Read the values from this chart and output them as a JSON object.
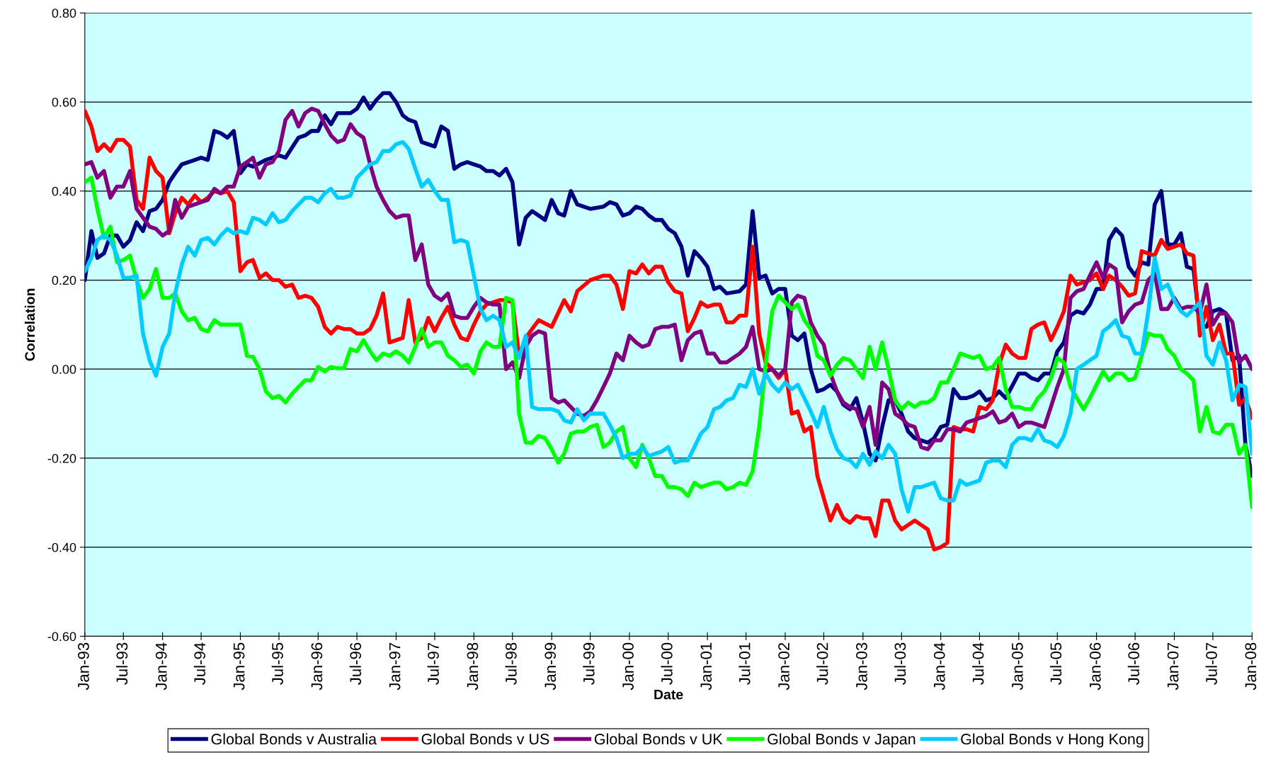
{
  "chart_data": {
    "type": "line",
    "xlabel": "Date",
    "ylabel": "Correlation",
    "xlim": [
      "1993-01",
      "2008-01"
    ],
    "xticks": [
      {
        "value": "1993-01",
        "label": "Jan-93"
      },
      {
        "value": "1993-07",
        "label": "Jul-93"
      },
      {
        "value": "1994-01",
        "label": "Jan-94"
      },
      {
        "value": "1994-07",
        "label": "Jul-94"
      },
      {
        "value": "1995-01",
        "label": "Jan-95"
      },
      {
        "value": "1995-07",
        "label": "Jul-95"
      },
      {
        "value": "1996-01",
        "label": "Jan-96"
      },
      {
        "value": "1996-07",
        "label": "Jul-96"
      },
      {
        "value": "1997-01",
        "label": "Jan-97"
      },
      {
        "value": "1997-07",
        "label": "Jul-97"
      },
      {
        "value": "1998-01",
        "label": "Jan-98"
      },
      {
        "value": "1998-07",
        "label": "Jul-98"
      },
      {
        "value": "1999-01",
        "label": "Jan-99"
      },
      {
        "value": "1999-07",
        "label": "Jul-99"
      },
      {
        "value": "2000-01",
        "label": "Jan-00"
      },
      {
        "value": "2000-07",
        "label": "Jul-00"
      },
      {
        "value": "2001-01",
        "label": "Jan-01"
      },
      {
        "value": "2001-07",
        "label": "Jul-01"
      },
      {
        "value": "2002-01",
        "label": "Jan-02"
      },
      {
        "value": "2002-07",
        "label": "Jul-02"
      },
      {
        "value": "2003-01",
        "label": "Jan-03"
      },
      {
        "value": "2003-07",
        "label": "Jul-03"
      },
      {
        "value": "2004-01",
        "label": "Jan-04"
      },
      {
        "value": "2004-07",
        "label": "Jul-04"
      },
      {
        "value": "2005-01",
        "label": "Jan-05"
      },
      {
        "value": "2005-07",
        "label": "Jul-05"
      },
      {
        "value": "2006-01",
        "label": "Jan-06"
      },
      {
        "value": "2006-07",
        "label": "Jul-06"
      },
      {
        "value": "2007-01",
        "label": "Jan-07"
      },
      {
        "value": "2007-07",
        "label": "Jul-07"
      },
      {
        "value": "2008-01",
        "label": "Jan-08"
      }
    ],
    "ylim": [
      -0.6,
      0.8
    ],
    "yticks": [
      {
        "value": -0.6,
        "label": "-0.60"
      },
      {
        "value": -0.4,
        "label": "-0.40"
      },
      {
        "value": -0.2,
        "label": "-0.20"
      },
      {
        "value": 0.0,
        "label": "0.00"
      },
      {
        "value": 0.2,
        "label": "0.20"
      },
      {
        "value": 0.4,
        "label": "0.40"
      },
      {
        "value": 0.6,
        "label": "0.60"
      },
      {
        "value": 0.8,
        "label": "0.80"
      }
    ],
    "grid": "y",
    "legend": "bottom",
    "marker": "none",
    "line_style": "solid",
    "series": [
      {
        "name": "Global Bonds v Australia",
        "color": "#000080",
        "x": [
          "1993-01",
          "1993-02",
          "1993-03",
          "1993-04",
          "1993-05",
          "1993-06",
          "1993-07",
          "1993-08",
          "1993-09",
          "1993-10",
          "1993-11",
          "1993-12",
          "1994-01",
          "1994-02",
          "1994-03",
          "1994-04",
          "1994-06",
          "1994-07",
          "1994-08",
          "1994-09",
          "1994-10",
          "1994-11",
          "1994-12",
          "1995-01",
          "1995-02",
          "1995-03",
          "1995-05",
          "1995-07",
          "1995-08",
          "1995-10",
          "1995-11",
          "1995-12",
          "1996-01",
          "1996-02",
          "1996-03",
          "1996-04",
          "1996-06",
          "1996-07",
          "1996-08",
          "1996-09",
          "1996-10",
          "1996-11",
          "1996-12",
          "1997-01",
          "1997-02",
          "1997-03",
          "1997-04",
          "1997-05",
          "1997-06",
          "1997-07",
          "1997-08",
          "1997-09",
          "1997-10",
          "1997-11",
          "1997-12",
          "1998-01",
          "1998-02",
          "1998-03",
          "1998-04",
          "1998-05",
          "1998-06",
          "1998-07",
          "1998-08",
          "1998-09",
          "1998-10",
          "1998-11",
          "1998-12",
          "1999-01",
          "1999-02",
          "1999-03",
          "1999-04",
          "1999-05",
          "1999-06",
          "1999-07",
          "1999-09",
          "1999-10",
          "1999-11",
          "1999-12",
          "2000-01",
          "2000-02",
          "2000-03",
          "2000-04",
          "2000-05",
          "2000-06",
          "2000-07",
          "2000-08",
          "2000-09",
          "2000-10",
          "2000-11",
          "2000-12",
          "2001-01",
          "2001-02",
          "2001-03",
          "2001-04",
          "2001-06",
          "2001-07",
          "2001-08",
          "2001-09",
          "2001-10",
          "2001-11",
          "2001-12",
          "2002-01",
          "2002-02",
          "2002-03",
          "2002-04",
          "2002-05",
          "2002-06",
          "2002-07",
          "2002-08",
          "2002-09",
          "2002-10",
          "2002-11",
          "2002-12",
          "2003-01",
          "2003-02",
          "2003-03",
          "2003-04",
          "2003-05",
          "2003-06",
          "2003-07",
          "2003-08",
          "2003-09",
          "2003-10",
          "2003-11",
          "2003-12",
          "2004-01",
          "2004-02",
          "2004-03",
          "2004-04",
          "2004-05",
          "2004-06",
          "2004-07",
          "2004-08",
          "2004-09",
          "2004-10",
          "2004-11",
          "2005-01",
          "2005-02",
          "2005-03",
          "2005-04",
          "2005-05",
          "2005-06",
          "2005-07",
          "2005-08",
          "2005-09",
          "2005-10",
          "2005-11",
          "2005-12",
          "2006-01",
          "2006-02",
          "2006-03",
          "2006-04",
          "2006-05",
          "2006-06",
          "2006-07",
          "2006-08",
          "2006-09",
          "2006-10",
          "2006-11",
          "2006-12",
          "2007-01",
          "2007-02",
          "2007-03",
          "2007-04",
          "2007-05",
          "2007-06",
          "2007-07",
          "2007-08",
          "2007-09",
          "2007-10",
          "2007-11",
          "2007-12",
          "2008-01"
        ],
        "values": [
          0.2,
          0.31,
          0.25,
          0.26,
          0.3,
          0.3,
          0.275,
          0.29,
          0.33,
          0.31,
          0.355,
          0.36,
          0.38,
          0.42,
          0.44,
          0.46,
          0.47,
          0.475,
          0.47,
          0.535,
          0.53,
          0.52,
          0.535,
          0.44,
          0.46,
          0.455,
          0.47,
          0.48,
          0.475,
          0.52,
          0.525,
          0.535,
          0.535,
          0.57,
          0.55,
          0.575,
          0.575,
          0.585,
          0.61,
          0.585,
          0.605,
          0.62,
          0.62,
          0.6,
          0.57,
          0.56,
          0.555,
          0.51,
          0.505,
          0.5,
          0.545,
          0.535,
          0.45,
          0.46,
          0.465,
          0.46,
          0.455,
          0.445,
          0.445,
          0.435,
          0.45,
          0.42,
          0.28,
          0.34,
          0.355,
          0.345,
          0.335,
          0.38,
          0.35,
          0.345,
          0.4,
          0.37,
          0.365,
          0.36,
          0.365,
          0.375,
          0.37,
          0.345,
          0.35,
          0.365,
          0.36,
          0.345,
          0.335,
          0.335,
          0.315,
          0.305,
          0.275,
          0.21,
          0.265,
          0.25,
          0.23,
          0.18,
          0.185,
          0.17,
          0.175,
          0.19,
          0.355,
          0.205,
          0.21,
          0.17,
          0.18,
          0.18,
          0.075,
          0.065,
          0.08,
          0.0,
          -0.05,
          -0.045,
          -0.035,
          -0.05,
          -0.08,
          -0.09,
          -0.065,
          -0.12,
          -0.19,
          -0.205,
          -0.13,
          -0.07,
          -0.07,
          -0.1,
          -0.14,
          -0.155,
          -0.16,
          -0.165,
          -0.155,
          -0.13,
          -0.125,
          -0.045,
          -0.065,
          -0.065,
          -0.06,
          -0.05,
          -0.07,
          -0.065,
          -0.05,
          -0.065,
          -0.01,
          -0.01,
          -0.02,
          -0.025,
          -0.01,
          -0.01,
          0.04,
          0.06,
          0.12,
          0.13,
          0.125,
          0.145,
          0.18,
          0.18,
          0.29,
          0.315,
          0.3,
          0.23,
          0.21,
          0.24,
          0.235,
          0.37,
          0.4,
          0.28,
          0.28,
          0.305,
          0.23,
          0.225,
          0.1,
          0.095,
          0.13,
          0.135,
          0.125,
          0.02,
          0.03,
          -0.17,
          -0.24
        ]
      },
      {
        "name": "Global Bonds v US",
        "color": "#ff0000",
        "x": [
          "1993-01",
          "1993-02",
          "1993-03",
          "1993-04",
          "1993-05",
          "1993-06",
          "1993-07",
          "1993-08",
          "1993-09",
          "1993-10",
          "1993-11",
          "1993-12",
          "1994-01",
          "1994-02",
          "1994-03",
          "1994-04",
          "1994-05",
          "1994-06",
          "1994-07",
          "1994-08",
          "1994-09",
          "1994-10",
          "1994-11",
          "1994-12",
          "1995-01",
          "1995-02",
          "1995-03",
          "1995-04",
          "1995-05",
          "1995-06",
          "1995-07",
          "1995-08",
          "1995-09",
          "1995-10",
          "1995-11",
          "1995-12",
          "1996-01",
          "1996-02",
          "1996-03",
          "1996-04",
          "1996-05",
          "1996-06",
          "1996-07",
          "1996-08",
          "1996-09",
          "1996-10",
          "1996-11",
          "1996-12",
          "1997-01",
          "1997-02",
          "1997-03",
          "1997-04",
          "1997-05",
          "1997-06",
          "1997-07",
          "1997-08",
          "1997-09",
          "1997-10",
          "1997-11",
          "1997-12",
          "1998-01",
          "1998-02",
          "1998-03",
          "1998-04",
          "1998-05",
          "1998-06",
          "1998-07",
          "1998-08",
          "1998-09",
          "1998-10",
          "1998-11",
          "1999-01",
          "1999-03",
          "1999-04",
          "1999-05",
          "1999-07",
          "1999-08",
          "1999-09",
          "1999-10",
          "1999-11",
          "1999-12",
          "2000-01",
          "2000-02",
          "2000-03",
          "2000-04",
          "2000-05",
          "2000-06",
          "2000-07",
          "2000-08",
          "2000-09",
          "2000-10",
          "2000-11",
          "2000-12",
          "2001-01",
          "2001-02",
          "2001-03",
          "2001-04",
          "2001-05",
          "2001-06",
          "2001-07",
          "2001-08",
          "2001-09",
          "2001-10",
          "2001-11",
          "2001-12",
          "2002-01",
          "2002-02",
          "2002-03",
          "2002-04",
          "2002-05",
          "2002-06",
          "2002-07",
          "2002-08",
          "2002-09",
          "2002-10",
          "2002-11",
          "2002-12",
          "2003-01",
          "2003-02",
          "2003-03",
          "2003-04",
          "2003-05",
          "2003-06",
          "2003-07",
          "2003-08",
          "2003-09",
          "2003-10",
          "2003-11",
          "2003-12",
          "2004-01",
          "2004-02",
          "2004-03",
          "2004-04",
          "2004-05",
          "2004-06",
          "2004-07",
          "2004-08",
          "2004-09",
          "2004-10",
          "2004-11",
          "2004-12",
          "2005-01",
          "2005-02",
          "2005-03",
          "2005-04",
          "2005-05",
          "2005-06",
          "2005-07",
          "2005-08",
          "2005-09",
          "2005-10",
          "2005-11",
          "2005-12",
          "2006-01",
          "2006-02",
          "2006-03",
          "2006-04",
          "2006-05",
          "2006-06",
          "2006-07",
          "2006-08",
          "2006-09",
          "2006-10",
          "2006-11",
          "2006-12",
          "2007-01",
          "2007-02",
          "2007-03",
          "2007-04",
          "2007-05",
          "2007-06",
          "2007-07",
          "2007-08",
          "2007-09",
          "2007-10",
          "2007-11",
          "2007-12",
          "2008-01"
        ],
        "values": [
          0.58,
          0.545,
          0.49,
          0.505,
          0.49,
          0.515,
          0.515,
          0.5,
          0.38,
          0.36,
          0.475,
          0.445,
          0.43,
          0.305,
          0.35,
          0.385,
          0.37,
          0.39,
          0.375,
          0.385,
          0.4,
          0.395,
          0.4,
          0.375,
          0.22,
          0.24,
          0.245,
          0.205,
          0.215,
          0.2,
          0.2,
          0.185,
          0.19,
          0.16,
          0.165,
          0.16,
          0.14,
          0.095,
          0.08,
          0.095,
          0.09,
          0.09,
          0.08,
          0.08,
          0.09,
          0.12,
          0.17,
          0.06,
          0.065,
          0.07,
          0.155,
          0.06,
          0.07,
          0.115,
          0.085,
          0.115,
          0.14,
          0.1,
          0.07,
          0.065,
          0.1,
          0.13,
          0.145,
          0.15,
          0.155,
          0.155,
          0.15,
          0.03,
          0.07,
          0.09,
          0.11,
          0.095,
          0.155,
          0.13,
          0.175,
          0.2,
          0.205,
          0.21,
          0.21,
          0.19,
          0.135,
          0.22,
          0.215,
          0.235,
          0.215,
          0.23,
          0.23,
          0.195,
          0.175,
          0.17,
          0.085,
          0.115,
          0.15,
          0.14,
          0.145,
          0.145,
          0.105,
          0.105,
          0.12,
          0.12,
          0.275,
          0.08,
          0.015,
          0.0,
          -0.02,
          0.0,
          -0.1,
          -0.095,
          -0.14,
          -0.13,
          -0.24,
          -0.29,
          -0.34,
          -0.305,
          -0.335,
          -0.345,
          -0.33,
          -0.335,
          -0.335,
          -0.375,
          -0.295,
          -0.295,
          -0.34,
          -0.36,
          -0.35,
          -0.34,
          -0.35,
          -0.36,
          -0.405,
          -0.4,
          -0.39,
          -0.13,
          -0.135,
          -0.135,
          -0.14,
          -0.085,
          -0.09,
          -0.07,
          0.01,
          0.055,
          0.035,
          0.025,
          0.025,
          0.09,
          0.1,
          0.105,
          0.065,
          0.095,
          0.13,
          0.21,
          0.19,
          0.195,
          0.2,
          0.215,
          0.18,
          0.21,
          0.2,
          0.185,
          0.165,
          0.17,
          0.265,
          0.26,
          0.255,
          0.29,
          0.27,
          0.275,
          0.28,
          0.26,
          0.255,
          0.075,
          0.14,
          0.065,
          0.1,
          0.035,
          0.035,
          -0.08,
          -0.065,
          -0.11
        ]
      },
      {
        "name": "Global Bonds v UK",
        "color": "#800080",
        "x": [
          "1993-01",
          "1993-02",
          "1993-03",
          "1993-04",
          "1993-05",
          "1993-06",
          "1993-07",
          "1993-08",
          "1993-09",
          "1993-10",
          "1993-11",
          "1993-12",
          "1994-01",
          "1994-02",
          "1994-03",
          "1994-04",
          "1994-05",
          "1994-06",
          "1994-07",
          "1994-08",
          "1994-09",
          "1994-10",
          "1994-11",
          "1994-12",
          "1995-01",
          "1995-02",
          "1995-03",
          "1995-04",
          "1995-05",
          "1995-06",
          "1995-07",
          "1995-08",
          "1995-09",
          "1995-10",
          "1995-11",
          "1995-12",
          "1996-01",
          "1996-02",
          "1996-03",
          "1996-04",
          "1996-05",
          "1996-06",
          "1996-07",
          "1996-08",
          "1996-09",
          "1996-10",
          "1996-11",
          "1996-12",
          "1997-01",
          "1997-02",
          "1997-03",
          "1997-04",
          "1997-05",
          "1997-06",
          "1997-07",
          "1997-08",
          "1997-09",
          "1997-10",
          "1997-11",
          "1997-12",
          "1998-01",
          "1998-02",
          "1998-03",
          "1998-04",
          "1998-05",
          "1998-06",
          "1998-07",
          "1998-08",
          "1998-09",
          "1998-10",
          "1998-11",
          "1998-12",
          "1999-01",
          "1999-02",
          "1999-03",
          "1999-04",
          "1999-05",
          "1999-06",
          "1999-07",
          "1999-08",
          "1999-09",
          "1999-10",
          "1999-11",
          "1999-12",
          "2000-01",
          "2000-02",
          "2000-03",
          "2000-04",
          "2000-05",
          "2000-06",
          "2000-07",
          "2000-08",
          "2000-09",
          "2000-10",
          "2000-11",
          "2000-12",
          "2001-01",
          "2001-02",
          "2001-03",
          "2001-04",
          "2001-05",
          "2001-06",
          "2001-07",
          "2001-08",
          "2001-09",
          "2001-10",
          "2001-11",
          "2001-12",
          "2002-01",
          "2002-02",
          "2002-03",
          "2002-04",
          "2002-05",
          "2002-06",
          "2002-07",
          "2002-08",
          "2002-09",
          "2002-10",
          "2002-11",
          "2002-12",
          "2003-01",
          "2003-02",
          "2003-03",
          "2003-04",
          "2003-05",
          "2003-06",
          "2003-07",
          "2003-08",
          "2003-09",
          "2003-10",
          "2003-11",
          "2003-12",
          "2004-01",
          "2004-02",
          "2004-03",
          "2004-04",
          "2004-05",
          "2004-06",
          "2004-07",
          "2004-08",
          "2004-09",
          "2004-10",
          "2004-11",
          "2004-12",
          "2005-01",
          "2005-02",
          "2005-03",
          "2005-04",
          "2005-05",
          "2005-06",
          "2005-07",
          "2005-08",
          "2005-09",
          "2005-10",
          "2005-11",
          "2005-12",
          "2006-01",
          "2006-02",
          "2006-03",
          "2006-04",
          "2006-05",
          "2006-06",
          "2006-07",
          "2006-08",
          "2006-09",
          "2006-10",
          "2006-11",
          "2006-12",
          "2007-01",
          "2007-02",
          "2007-03",
          "2007-04",
          "2007-05",
          "2007-06",
          "2007-07",
          "2007-08",
          "2007-09",
          "2007-10",
          "2007-11",
          "2007-12",
          "2008-01"
        ],
        "values": [
          0.46,
          0.465,
          0.43,
          0.445,
          0.385,
          0.41,
          0.41,
          0.445,
          0.36,
          0.34,
          0.32,
          0.315,
          0.3,
          0.31,
          0.38,
          0.34,
          0.365,
          0.37,
          0.375,
          0.38,
          0.405,
          0.395,
          0.41,
          0.41,
          0.455,
          0.465,
          0.475,
          0.43,
          0.46,
          0.465,
          0.49,
          0.56,
          0.58,
          0.545,
          0.575,
          0.585,
          0.58,
          0.55,
          0.525,
          0.51,
          0.515,
          0.55,
          0.53,
          0.52,
          0.46,
          0.41,
          0.38,
          0.355,
          0.34,
          0.345,
          0.345,
          0.245,
          0.28,
          0.19,
          0.165,
          0.155,
          0.17,
          0.12,
          0.115,
          0.115,
          0.14,
          0.16,
          0.15,
          0.145,
          0.145,
          0.0,
          0.015,
          -0.02,
          0.05,
          0.075,
          0.085,
          0.08,
          -0.065,
          -0.075,
          -0.07,
          -0.085,
          -0.1,
          -0.105,
          -0.095,
          -0.07,
          -0.04,
          -0.01,
          0.035,
          0.02,
          0.075,
          0.06,
          0.05,
          0.055,
          0.09,
          0.095,
          0.095,
          0.1,
          0.02,
          0.065,
          0.08,
          0.085,
          0.035,
          0.035,
          0.015,
          0.015,
          0.025,
          0.035,
          0.05,
          0.095,
          0.0,
          -0.005,
          0.0,
          -0.015,
          0.0,
          0.15,
          0.165,
          0.16,
          0.105,
          0.075,
          0.055,
          -0.01,
          -0.05,
          -0.075,
          -0.085,
          -0.09,
          -0.13,
          -0.085,
          -0.17,
          -0.03,
          -0.045,
          -0.1,
          -0.11,
          -0.125,
          -0.13,
          -0.175,
          -0.18,
          -0.16,
          -0.16,
          -0.135,
          -0.135,
          -0.14,
          -0.12,
          -0.115,
          -0.11,
          -0.105,
          -0.095,
          -0.12,
          -0.115,
          -0.1,
          -0.13,
          -0.12,
          -0.12,
          -0.125,
          -0.13,
          -0.085,
          -0.04,
          0.0,
          0.16,
          0.175,
          0.18,
          0.21,
          0.24,
          0.205,
          0.235,
          0.225,
          0.105,
          0.13,
          0.145,
          0.15,
          0.2,
          0.215,
          0.135,
          0.135,
          0.16,
          0.135,
          0.14,
          0.14,
          0.125,
          0.19,
          0.1,
          0.125,
          0.125,
          0.105,
          0.015,
          0.03,
          0.0
        ]
      },
      {
        "name": "Global Bonds v Japan",
        "color": "#00ff00",
        "x": [
          "1993-01",
          "1993-02",
          "1993-03",
          "1993-04",
          "1993-05",
          "1993-06",
          "1993-07",
          "1993-08",
          "1993-09",
          "1993-10",
          "1993-11",
          "1993-12",
          "1994-01",
          "1994-02",
          "1994-03",
          "1994-04",
          "1994-05",
          "1994-06",
          "1994-07",
          "1994-08",
          "1994-09",
          "1994-10",
          "1994-11",
          "1994-12",
          "1995-01",
          "1995-02",
          "1995-03",
          "1995-04",
          "1995-05",
          "1995-06",
          "1995-07",
          "1995-08",
          "1995-09",
          "1995-10",
          "1995-11",
          "1995-12",
          "1996-01",
          "1996-02",
          "1996-03",
          "1996-04",
          "1996-05",
          "1996-06",
          "1996-07",
          "1996-08",
          "1996-09",
          "1996-10",
          "1996-11",
          "1996-12",
          "1997-01",
          "1997-02",
          "1997-03",
          "1997-04",
          "1997-05",
          "1997-06",
          "1997-07",
          "1997-08",
          "1997-09",
          "1997-10",
          "1997-11",
          "1997-12",
          "1998-01",
          "1998-02",
          "1998-03",
          "1998-04",
          "1998-05",
          "1998-06",
          "1998-07",
          "1998-08",
          "1998-09",
          "1998-10",
          "1998-11",
          "1998-12",
          "1999-01",
          "1999-02",
          "1999-03",
          "1999-04",
          "1999-05",
          "1999-06",
          "1999-07",
          "1999-08",
          "1999-09",
          "1999-10",
          "1999-11",
          "1999-12",
          "2000-01",
          "2000-02",
          "2000-03",
          "2000-04",
          "2000-05",
          "2000-06",
          "2000-07",
          "2000-08",
          "2000-09",
          "2000-10",
          "2000-11",
          "2000-12",
          "2001-01",
          "2001-02",
          "2001-03",
          "2001-04",
          "2001-05",
          "2001-06",
          "2001-07",
          "2001-08",
          "2001-09",
          "2001-10",
          "2001-11",
          "2001-12",
          "2002-01",
          "2002-02",
          "2002-03",
          "2002-04",
          "2002-05",
          "2002-06",
          "2002-07",
          "2002-08",
          "2002-09",
          "2002-10",
          "2002-11",
          "2002-12",
          "2003-01",
          "2003-02",
          "2003-03",
          "2003-04",
          "2003-05",
          "2003-06",
          "2003-07",
          "2003-08",
          "2003-09",
          "2003-10",
          "2003-11",
          "2003-12",
          "2004-01",
          "2004-02",
          "2004-03",
          "2004-04",
          "2004-05",
          "2004-06",
          "2004-07",
          "2004-08",
          "2004-09",
          "2004-10",
          "2004-11",
          "2004-12",
          "2005-01",
          "2005-02",
          "2005-03",
          "2005-04",
          "2005-05",
          "2005-06",
          "2005-07",
          "2005-08",
          "2005-09",
          "2005-10",
          "2005-11",
          "2005-12",
          "2006-01",
          "2006-02",
          "2006-03",
          "2006-04",
          "2006-05",
          "2006-06",
          "2006-07",
          "2006-08",
          "2006-09",
          "2006-10",
          "2006-11",
          "2006-12",
          "2007-01",
          "2007-02",
          "2007-03",
          "2007-04",
          "2007-05",
          "2007-06",
          "2007-07",
          "2007-08",
          "2007-09",
          "2007-10",
          "2007-11",
          "2007-12",
          "2008-01"
        ],
        "values": [
          0.42,
          0.43,
          0.36,
          0.295,
          0.32,
          0.24,
          0.245,
          0.255,
          0.2,
          0.16,
          0.18,
          0.225,
          0.16,
          0.16,
          0.17,
          0.13,
          0.11,
          0.115,
          0.09,
          0.085,
          0.11,
          0.1,
          0.1,
          0.1,
          0.1,
          0.03,
          0.028,
          0.0,
          -0.05,
          -0.065,
          -0.06,
          -0.075,
          -0.055,
          -0.04,
          -0.025,
          -0.025,
          0.005,
          -0.005,
          0.005,
          0.002,
          0.002,
          0.045,
          0.04,
          0.065,
          0.04,
          0.02,
          0.035,
          0.03,
          0.04,
          0.03,
          0.015,
          0.05,
          0.09,
          0.05,
          0.06,
          0.06,
          0.03,
          0.02,
          0.005,
          0.01,
          -0.01,
          0.04,
          0.06,
          0.05,
          0.05,
          0.16,
          0.155,
          -0.1,
          -0.165,
          -0.165,
          -0.15,
          -0.155,
          -0.18,
          -0.21,
          -0.19,
          -0.145,
          -0.14,
          -0.14,
          -0.13,
          -0.125,
          -0.175,
          -0.165,
          -0.14,
          -0.13,
          -0.2,
          -0.22,
          -0.17,
          -0.2,
          -0.24,
          -0.24,
          -0.265,
          -0.265,
          -0.27,
          -0.285,
          -0.255,
          -0.265,
          -0.26,
          -0.255,
          -0.255,
          -0.27,
          -0.265,
          -0.255,
          -0.26,
          -0.23,
          -0.13,
          0.01,
          0.13,
          0.165,
          0.15,
          0.135,
          0.145,
          0.11,
          0.09,
          0.03,
          0.02,
          -0.015,
          0.01,
          0.025,
          0.02,
          0.0,
          -0.02,
          0.05,
          0.0,
          0.06,
          0.0,
          -0.07,
          -0.09,
          -0.075,
          -0.085,
          -0.075,
          -0.075,
          -0.065,
          -0.03,
          -0.03,
          0.0,
          0.035,
          0.03,
          0.025,
          0.03,
          0.0,
          0.005,
          0.025,
          -0.045,
          -0.085,
          -0.085,
          -0.09,
          -0.09,
          -0.065,
          -0.05,
          -0.02,
          0.025,
          0.015,
          -0.04,
          -0.065,
          -0.09,
          -0.065,
          -0.035,
          -0.005,
          -0.025,
          -0.01,
          -0.01,
          -0.025,
          -0.02,
          0.03,
          0.08,
          0.075,
          0.075,
          0.045,
          0.03,
          0.0,
          -0.01,
          -0.025,
          -0.14,
          -0.085,
          -0.14,
          -0.145,
          -0.125,
          -0.125,
          -0.19,
          -0.17,
          -0.31
        ]
      },
      {
        "name": "Global Bonds v Hong Kong",
        "color": "#00ccff",
        "x": [
          "1993-01",
          "1993-02",
          "1993-03",
          "1993-04",
          "1993-05",
          "1993-06",
          "1993-07",
          "1993-08",
          "1993-09",
          "1993-10",
          "1993-11",
          "1993-12",
          "1994-01",
          "1994-02",
          "1994-03",
          "1994-04",
          "1994-05",
          "1994-06",
          "1994-07",
          "1994-08",
          "1994-09",
          "1994-10",
          "1994-11",
          "1994-12",
          "1995-01",
          "1995-02",
          "1995-03",
          "1995-04",
          "1995-05",
          "1995-06",
          "1995-07",
          "1995-08",
          "1995-09",
          "1995-10",
          "1995-11",
          "1995-12",
          "1996-01",
          "1996-02",
          "1996-03",
          "1996-04",
          "1996-05",
          "1996-06",
          "1996-07",
          "1996-08",
          "1996-09",
          "1996-10",
          "1996-11",
          "1996-12",
          "1997-01",
          "1997-02",
          "1997-03",
          "1997-04",
          "1997-05",
          "1997-06",
          "1997-07",
          "1997-08",
          "1997-09",
          "1997-10",
          "1997-11",
          "1997-12",
          "1998-01",
          "1998-02",
          "1998-03",
          "1998-04",
          "1998-05",
          "1998-06",
          "1998-07",
          "1998-08",
          "1998-09",
          "1998-10",
          "1998-11",
          "1998-12",
          "1999-01",
          "1999-02",
          "1999-03",
          "1999-04",
          "1999-05",
          "1999-06",
          "1999-07",
          "1999-08",
          "1999-09",
          "1999-10",
          "1999-11",
          "1999-12",
          "2000-01",
          "2000-02",
          "2000-03",
          "2000-04",
          "2000-05",
          "2000-06",
          "2000-07",
          "2000-08",
          "2000-09",
          "2000-10",
          "2000-11",
          "2000-12",
          "2001-01",
          "2001-02",
          "2001-03",
          "2001-04",
          "2001-05",
          "2001-06",
          "2001-07",
          "2001-08",
          "2001-09",
          "2001-10",
          "2001-11",
          "2001-12",
          "2002-01",
          "2002-02",
          "2002-03",
          "2002-04",
          "2002-05",
          "2002-06",
          "2002-07",
          "2002-08",
          "2002-09",
          "2002-10",
          "2002-11",
          "2002-12",
          "2003-01",
          "2003-02",
          "2003-03",
          "2003-04",
          "2003-05",
          "2003-06",
          "2003-07",
          "2003-08",
          "2003-09",
          "2003-10",
          "2003-11",
          "2003-12",
          "2004-01",
          "2004-02",
          "2004-03",
          "2004-04",
          "2004-05",
          "2004-06",
          "2004-07",
          "2004-08",
          "2004-09",
          "2004-10",
          "2004-11",
          "2004-12",
          "2005-01",
          "2005-02",
          "2005-03",
          "2005-04",
          "2005-05",
          "2005-06",
          "2005-07",
          "2005-08",
          "2005-09",
          "2005-10",
          "2005-11",
          "2005-12",
          "2006-01",
          "2006-02",
          "2006-03",
          "2006-04",
          "2006-05",
          "2006-06",
          "2006-07",
          "2006-08",
          "2006-09",
          "2006-10",
          "2006-11",
          "2006-12",
          "2007-01",
          "2007-02",
          "2007-03",
          "2007-04",
          "2007-05",
          "2007-06",
          "2007-07",
          "2007-08",
          "2007-09",
          "2007-10",
          "2007-11",
          "2007-12",
          "2008-01"
        ],
        "values": [
          0.22,
          0.25,
          0.29,
          0.3,
          0.29,
          0.255,
          0.205,
          0.205,
          0.21,
          0.08,
          0.02,
          -0.015,
          0.05,
          0.08,
          0.17,
          0.235,
          0.275,
          0.255,
          0.29,
          0.295,
          0.28,
          0.3,
          0.315,
          0.305,
          0.31,
          0.305,
          0.34,
          0.335,
          0.325,
          0.35,
          0.33,
          0.335,
          0.355,
          0.37,
          0.385,
          0.385,
          0.375,
          0.395,
          0.405,
          0.385,
          0.385,
          0.39,
          0.43,
          0.445,
          0.46,
          0.465,
          0.49,
          0.49,
          0.505,
          0.51,
          0.495,
          0.45,
          0.41,
          0.425,
          0.4,
          0.38,
          0.38,
          0.285,
          0.29,
          0.285,
          0.21,
          0.135,
          0.11,
          0.12,
          0.11,
          0.05,
          0.06,
          0.025,
          0.075,
          -0.085,
          -0.09,
          -0.09,
          -0.09,
          -0.095,
          -0.115,
          -0.12,
          -0.09,
          -0.115,
          -0.1,
          -0.1,
          -0.1,
          -0.125,
          -0.155,
          -0.2,
          -0.19,
          -0.19,
          -0.175,
          -0.195,
          -0.19,
          -0.185,
          -0.175,
          -0.21,
          -0.205,
          -0.205,
          -0.175,
          -0.145,
          -0.13,
          -0.09,
          -0.085,
          -0.07,
          -0.065,
          -0.035,
          -0.04,
          0.0,
          -0.055,
          -0.01,
          -0.035,
          -0.05,
          -0.03,
          -0.045,
          -0.035,
          -0.065,
          -0.095,
          -0.13,
          -0.085,
          -0.14,
          -0.18,
          -0.2,
          -0.205,
          -0.22,
          -0.19,
          -0.215,
          -0.185,
          -0.2,
          -0.17,
          -0.19,
          -0.27,
          -0.32,
          -0.265,
          -0.265,
          -0.26,
          -0.255,
          -0.29,
          -0.295,
          -0.295,
          -0.25,
          -0.26,
          -0.255,
          -0.25,
          -0.21,
          -0.205,
          -0.205,
          -0.22,
          -0.17,
          -0.155,
          -0.155,
          -0.16,
          -0.135,
          -0.16,
          -0.165,
          -0.175,
          -0.15,
          -0.1,
          0.0,
          0.01,
          0.02,
          0.03,
          0.085,
          0.095,
          0.11,
          0.075,
          0.07,
          0.035,
          0.035,
          0.13,
          0.25,
          0.18,
          0.19,
          0.155,
          0.13,
          0.12,
          0.135,
          0.15,
          0.03,
          0.01,
          0.06,
          0.02,
          -0.07,
          -0.035,
          -0.04,
          -0.19
        ]
      }
    ]
  }
}
